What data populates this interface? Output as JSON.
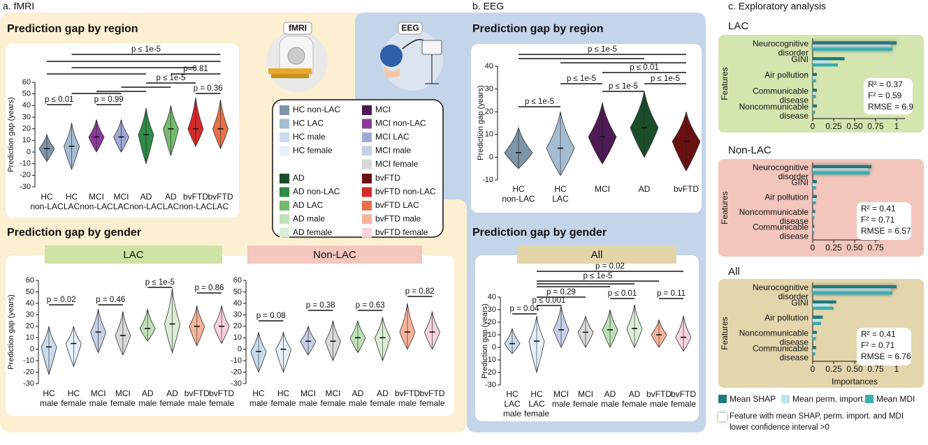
{
  "panel_labels": [
    "a. fMRI",
    "b. EEG",
    "c. Exploratory analysis"
  ],
  "section_titles": [
    "Prediction gap by region",
    "Prediction gap by gender",
    "Prediction gap by region",
    "Prediction gap by gender"
  ],
  "icons": {
    "fmri": "fMRI",
    "eeg": "EEG"
  },
  "legend": [
    [
      {
        "label": "HC non-LAC",
        "color": "#7f95a8"
      },
      {
        "label": "HC LAC",
        "color": "#a5bdd3"
      },
      {
        "label": "HC male",
        "color": "#c9dcee"
      },
      {
        "label": "HC female",
        "color": "#e6f0fa"
      }
    ],
    [
      {
        "label": "MCI",
        "color": "#4e1a55"
      },
      {
        "label": "MCI non-LAC",
        "color": "#8b3a9b"
      },
      {
        "label": "MCI LAC",
        "color": "#a0a9d6"
      },
      {
        "label": "MCI male",
        "color": "#c6cfe6"
      },
      {
        "label": "MCI female",
        "color": "#d9d9d9"
      }
    ],
    [
      {
        "label": "AD",
        "color": "#1a4d2a"
      },
      {
        "label": "AD non-LAC",
        "color": "#2e8b47"
      },
      {
        "label": "AD LAC",
        "color": "#74b96e"
      },
      {
        "label": "AD male",
        "color": "#bfe0b8"
      },
      {
        "label": "AD female",
        "color": "#dcefd6"
      }
    ],
    [
      {
        "label": "bvFTD",
        "color": "#6b1010"
      },
      {
        "label": "bvFTD non-LAC",
        "color": "#d42a2a"
      },
      {
        "label": "bvFTD LAC",
        "color": "#e8704a"
      },
      {
        "label": "bvFTD male",
        "color": "#f6b49a"
      },
      {
        "label": "bvFTD female",
        "color": "#f8d3dc"
      }
    ]
  ],
  "bar_legend_note": [
    "Feature with mean SHAP, perm. import. and MDI",
    "lower confidence interval >0"
  ],
  "chart_data": [
    {
      "type": "violin",
      "ylabel": "Prediction gap (years)",
      "ylim": [
        -30,
        60
      ],
      "yticks": [
        -30,
        -20,
        -10,
        0,
        10,
        20,
        30,
        40,
        50,
        60
      ],
      "categories": [
        [
          "HC",
          "non-LAC"
        ],
        [
          "HC",
          "LAC"
        ],
        [
          "MCI",
          "non-LAC"
        ],
        [
          "MCI",
          "LAC"
        ],
        [
          "AD",
          "non-LAC"
        ],
        [
          "AD",
          "LAC"
        ],
        [
          "bvFTD",
          "non-LAC"
        ],
        [
          "bvFTD",
          "LAC"
        ]
      ],
      "values": [
        3,
        5,
        13,
        13,
        15,
        20,
        20,
        20
      ],
      "mins": [
        -8,
        -15,
        0,
        0,
        -10,
        -3,
        5,
        3
      ],
      "maxs": [
        15,
        25,
        28,
        28,
        38,
        40,
        47,
        45
      ],
      "colors": [
        "#7f95a8",
        "#a5bdd3",
        "#8b3a9b",
        "#a0a9d6",
        "#2e8b47",
        "#74b96e",
        "#d42a2a",
        "#e8704a"
      ],
      "comparisons": [
        {
          "between": [
            1,
            7
          ],
          "label": "p ≤ 1e-5"
        },
        {
          "between": [
            0,
            7
          ]
        },
        {
          "between": [
            1,
            6
          ]
        },
        {
          "between": [
            0,
            4
          ]
        },
        {
          "between": [
            5,
            7
          ],
          "label": "p=0.81"
        },
        {
          "between": [
            4,
            6
          ],
          "label": "p ≤ 1e-5"
        },
        {
          "between": [
            3,
            5
          ]
        },
        {
          "between": [
            2,
            4
          ]
        },
        {
          "between": [
            6,
            7
          ],
          "label": "p = 0.36"
        },
        {
          "between": [
            1,
            3
          ]
        },
        {
          "between": [
            0,
            1
          ],
          "label": "p ≤ 0.01"
        },
        {
          "between": [
            2,
            3
          ],
          "label": "p = 0.99"
        }
      ]
    },
    {
      "type": "violin",
      "title": "LAC",
      "ylabel": "Prediction gap (years)",
      "ylim": [
        -30,
        60
      ],
      "yticks": [
        -30,
        -20,
        -10,
        0,
        10,
        20,
        30,
        40,
        50,
        60
      ],
      "categories": [
        [
          "HC",
          "male"
        ],
        [
          "HC",
          "female"
        ],
        [
          "MCI",
          "male"
        ],
        [
          "MCI",
          "female"
        ],
        [
          "AD",
          "male"
        ],
        [
          "AD",
          "female"
        ],
        [
          "bvFTD",
          "male"
        ],
        [
          "bvFTD",
          "female"
        ]
      ],
      "values": [
        2,
        5,
        15,
        12,
        18,
        22,
        20,
        20
      ],
      "mins": [
        -22,
        -15,
        -3,
        -5,
        7,
        -3,
        3,
        5
      ],
      "maxs": [
        20,
        20,
        35,
        33,
        35,
        53,
        38,
        38
      ],
      "colors": [
        "#c9dcee",
        "#e6f0fa",
        "#c6cfe6",
        "#d9d9d9",
        "#bfe0b8",
        "#dcefd6",
        "#f6b49a",
        "#f8d3dc"
      ],
      "comparisons": [
        {
          "between": [
            0,
            1
          ],
          "label": "p = 0.02"
        },
        {
          "between": [
            2,
            3
          ],
          "label": "p = 0.46"
        },
        {
          "between": [
            4,
            5
          ],
          "label": "p ≤ 1e-5"
        },
        {
          "between": [
            6,
            7
          ],
          "label": "p = 0.86"
        }
      ]
    },
    {
      "type": "violin",
      "title": "Non-LAC",
      "ylim": [
        -30,
        60
      ],
      "yticks": [
        -30,
        -20,
        -10,
        0,
        10,
        20,
        30,
        40,
        50,
        60
      ],
      "categories": [
        [
          "HC",
          "male"
        ],
        [
          "HC",
          "female"
        ],
        [
          "MCI",
          "male"
        ],
        [
          "MCI",
          "female"
        ],
        [
          "AD",
          "male"
        ],
        [
          "AD",
          "female"
        ],
        [
          "bvFTD",
          "male"
        ],
        [
          "bvFTD",
          "female"
        ]
      ],
      "values": [
        -2,
        0,
        7,
        7,
        10,
        10,
        15,
        15
      ],
      "mins": [
        -20,
        -20,
        -5,
        -10,
        -3,
        -10,
        0,
        0
      ],
      "maxs": [
        15,
        15,
        20,
        25,
        25,
        28,
        40,
        33
      ],
      "colors": [
        "#c9dcee",
        "#e6f0fa",
        "#c6cfe6",
        "#d9d9d9",
        "#bfe0b8",
        "#dcefd6",
        "#f6b49a",
        "#f8d3dc"
      ],
      "comparisons": [
        {
          "between": [
            0,
            1
          ],
          "label": "p = 0.08"
        },
        {
          "between": [
            2,
            3
          ],
          "label": "p = 0.38"
        },
        {
          "between": [
            4,
            5
          ],
          "label": "p = 0.63"
        },
        {
          "between": [
            6,
            7
          ],
          "label": "p = 0.82"
        }
      ]
    },
    {
      "type": "violin",
      "ylabel": "Prediction gap (years)",
      "ylim": [
        -10,
        40
      ],
      "yticks": [
        -10,
        0,
        10,
        20,
        30,
        40
      ],
      "categories": [
        [
          "HC",
          "non-LAC"
        ],
        [
          "HC",
          "LAC"
        ],
        [
          "MCI"
        ],
        [
          "AD"
        ],
        [
          "bvFTD"
        ]
      ],
      "values": [
        2,
        4,
        9,
        13,
        7
      ],
      "mins": [
        -5,
        -8,
        -3,
        0,
        -6
      ],
      "maxs": [
        13,
        20,
        24,
        29,
        20
      ],
      "colors": [
        "#7f95a8",
        "#a5bdd3",
        "#4e1a55",
        "#1a4d2a",
        "#6b1010"
      ],
      "comparisons": [
        {
          "between": [
            0,
            4
          ],
          "label": "p ≤ 1e-5"
        },
        {
          "between": [
            0,
            3
          ]
        },
        {
          "between": [
            1,
            4
          ]
        },
        {
          "between": [
            2,
            4
          ],
          "label": "p ≤ 0.01"
        },
        {
          "between": [
            1,
            2
          ],
          "label": "p ≤ 1e-5"
        },
        {
          "between": [
            3,
            4
          ],
          "label": "p ≤ 1e-5"
        },
        {
          "between": [
            2,
            3
          ],
          "label": "p ≤ 1e-5"
        },
        {
          "between": [
            0,
            1
          ],
          "label": "p ≤ 1e-5"
        }
      ]
    },
    {
      "type": "violin",
      "title": "All",
      "ylabel": "Prediction gap (years)",
      "ylim": [
        -30,
        40
      ],
      "yticks": [
        -30,
        -20,
        -10,
        0,
        10,
        20,
        30,
        40
      ],
      "categories": [
        [
          "HC",
          "LAC",
          "male"
        ],
        [
          "HC",
          "LAC",
          "female"
        ],
        [
          "MCI",
          "male"
        ],
        [
          "MCI",
          "female"
        ],
        [
          "AD",
          "male"
        ],
        [
          "AD",
          "female"
        ],
        [
          "bvFTD",
          "male"
        ],
        [
          "bvFTD",
          "female"
        ]
      ],
      "values": [
        3,
        5,
        14,
        12,
        14,
        15,
        10,
        8
      ],
      "mins": [
        -5,
        -20,
        0,
        0,
        0,
        0,
        0,
        -3
      ],
      "maxs": [
        15,
        25,
        33,
        25,
        30,
        34,
        22,
        25
      ],
      "colors": [
        "#c9dcee",
        "#e6f0fa",
        "#c6cfe6",
        "#d9d9d9",
        "#bfe0b8",
        "#dcefd6",
        "#f6b49a",
        "#f8d3dc"
      ],
      "comparisons": [
        {
          "between": [
            1,
            7
          ],
          "label": "p = 0.02"
        },
        {
          "between": [
            1,
            6
          ],
          "label": "p ≤ 1e-5"
        },
        {
          "between": [
            1,
            5
          ]
        },
        {
          "between": [
            1,
            4
          ]
        },
        {
          "between": [
            1,
            3
          ],
          "label": "p = 0.29"
        },
        {
          "between": [
            1,
            2
          ],
          "label": "p ≤ 0.001"
        },
        {
          "between": [
            0,
            1
          ],
          "label": "p = 0.04"
        },
        {
          "between": [
            4,
            5
          ],
          "label": "p ≤ 0.01"
        },
        {
          "between": [
            6,
            7
          ],
          "label": "p = 0.11"
        }
      ]
    },
    {
      "type": "bar",
      "title": "LAC",
      "ylabel": "Features",
      "xlim": [
        0,
        1.1
      ],
      "xticks": [
        0,
        0.25,
        {
          "value": 0.5,
          "label": "0.50"
        },
        0.75,
        1
      ],
      "categories": [
        [
          "Neurocognitive",
          "disorder"
        ],
        [
          "GINI"
        ],
        [
          "Air pollution"
        ],
        [
          "Communicable",
          "disease"
        ],
        [
          "Noncommunicable",
          "disease"
        ]
      ],
      "highlight": [
        true,
        false,
        false,
        false,
        false
      ],
      "series": [
        {
          "name": "Mean SHAP",
          "color": "#1f7a7a",
          "values": [
            1.0,
            0.38,
            0.05,
            0.05,
            0.05
          ]
        },
        {
          "name": "Mean perm. import.",
          "color": "#bfe3ea",
          "values": [
            0.93,
            0.2,
            0.03,
            0.03,
            0.02
          ]
        },
        {
          "name": "Mean MDI",
          "color": "#3aaeb0",
          "values": [
            0.95,
            0.3,
            0.04,
            0.04,
            0.03
          ]
        }
      ],
      "annotations": [
        "R² = 0.37",
        "F² = 0.59",
        "RMSE = 6.9"
      ]
    },
    {
      "type": "bar",
      "title": "Non-LAC",
      "ylabel": "Features",
      "xlim": [
        0,
        0.8
      ],
      "xticks": [
        0,
        0.25,
        {
          "value": 0.5,
          "label": "0.50"
        },
        0.75
      ],
      "categories": [
        [
          "Neurocognitive",
          "disorder"
        ],
        [
          "GINI"
        ],
        [
          "Air pollution"
        ],
        [
          "Noncommunicable",
          "disease"
        ],
        [
          "Communicable",
          "disease"
        ]
      ],
      "highlight": [
        true,
        false,
        false,
        false,
        false
      ],
      "series": [
        {
          "name": "Mean SHAP",
          "color": "#1f7a7a",
          "values": [
            0.7,
            0.05,
            0.05,
            0.03,
            0.02
          ]
        },
        {
          "name": "Mean perm. import.",
          "color": "#bfe3ea",
          "values": [
            0.66,
            0.03,
            0.03,
            0.02,
            0.01
          ]
        },
        {
          "name": "Mean MDI",
          "color": "#3aaeb0",
          "values": [
            0.68,
            0.04,
            0.04,
            0.02,
            0.02
          ]
        }
      ],
      "annotations": [
        "R² = 0.41",
        "F² = 0.71",
        "RMSE = 6.57"
      ]
    },
    {
      "type": "bar",
      "title": "All",
      "ylabel": "Features",
      "xlabel": "Importances",
      "xlim": [
        0,
        1.1
      ],
      "xticks": [
        0,
        0.25,
        {
          "value": 0.5,
          "label": "0.50"
        },
        0.75,
        1
      ],
      "categories": [
        [
          "Neurocognitive",
          "disorder"
        ],
        [
          "GINI"
        ],
        [
          "Air pollution"
        ],
        [
          "Noncommunicable",
          "disease"
        ],
        [
          "Communicable",
          "disease"
        ]
      ],
      "highlight": [
        true,
        false,
        false,
        false,
        false
      ],
      "series": [
        {
          "name": "Mean SHAP",
          "color": "#1f7a7a",
          "values": [
            1.0,
            0.28,
            0.12,
            0.05,
            0.04
          ]
        },
        {
          "name": "Mean perm. import.",
          "color": "#bfe3ea",
          "values": [
            0.93,
            0.2,
            0.08,
            0.03,
            0.02
          ]
        },
        {
          "name": "Mean MDI",
          "color": "#3aaeb0",
          "values": [
            0.95,
            0.25,
            0.1,
            0.04,
            0.03
          ]
        }
      ],
      "annotations": [
        "R² = 0.41",
        "F² = 0.71",
        "RMSE = 6.76"
      ]
    }
  ]
}
